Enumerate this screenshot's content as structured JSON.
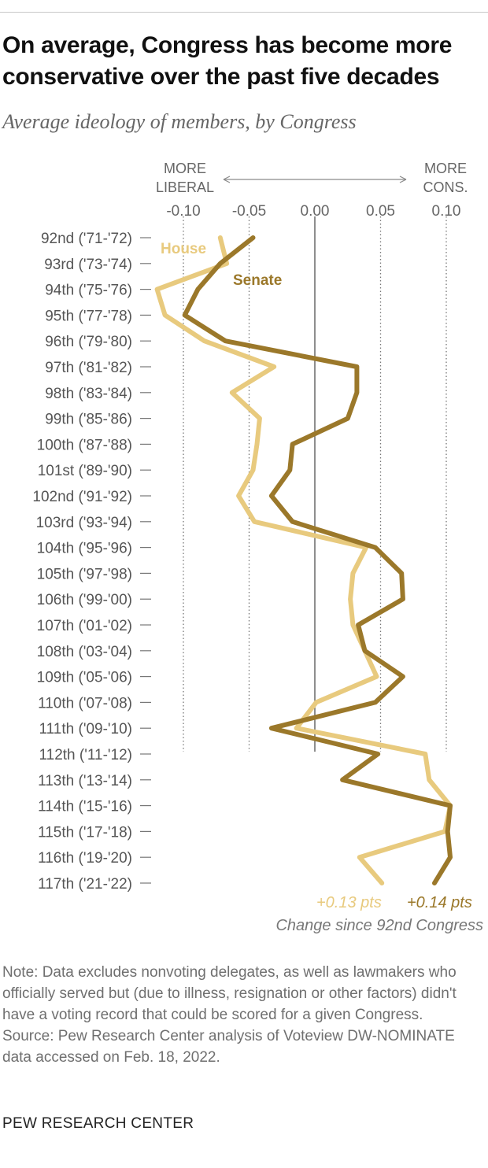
{
  "title": "On average, Congress has become more conservative over the past five decades",
  "subtitle": "Average ideology of members, by Congress",
  "colors": {
    "house": "#e8ca7e",
    "senate": "#9b782a",
    "axis": "#666666",
    "grid": "#777777"
  },
  "chart_data": {
    "type": "line",
    "x_axis": {
      "ticks": [
        -0.1,
        -0.05,
        0.0,
        0.05,
        0.1
      ],
      "tick_labels": [
        "-0.10",
        "-0.05",
        "0.00",
        "0.05",
        "0.10"
      ],
      "range": [
        -0.1,
        0.1
      ],
      "left_label": [
        "MORE",
        "LIBERAL"
      ],
      "right_label": [
        "MORE",
        "CONS."
      ]
    },
    "categories": [
      "92nd ('71-'72)",
      "93rd ('73-'74)",
      "94th ('75-'76)",
      "95th ('77-'78)",
      "96th ('79-'80)",
      "97th ('81-'82)",
      "98th ('83-'84)",
      "99th ('85-'86)",
      "100th ('87-'88)",
      "101st ('89-'90)",
      "102nd ('91-'92)",
      "103rd ('93-'94)",
      "104th ('95-'96)",
      "105th ('97-'98)",
      "106th ('99-'00)",
      "107th ('01-'02)",
      "108th ('03-'04)",
      "109th ('05-'06)",
      "110th ('07-'08)",
      "111th ('09-'10)",
      "112th ('11-'12)",
      "113th ('13-'14)",
      "114th ('15-'16)",
      "115th ('17-'18)",
      "116th ('19-'20)",
      "117th ('21-'22)"
    ],
    "series": [
      {
        "name": "House",
        "color": "#e8ca7e",
        "values": [
          -0.072,
          -0.067,
          -0.12,
          -0.114,
          -0.084,
          -0.031,
          -0.063,
          -0.042,
          -0.044,
          -0.047,
          -0.058,
          -0.046,
          0.039,
          0.029,
          0.027,
          0.029,
          0.038,
          0.047,
          0.001,
          -0.014,
          0.084,
          0.087,
          0.103,
          0.099,
          0.034,
          0.051
        ],
        "change_label": "+0.13 pts"
      },
      {
        "name": "Senate",
        "color": "#9b782a",
        "values": [
          -0.047,
          -0.072,
          -0.089,
          -0.099,
          -0.068,
          0.032,
          0.032,
          0.025,
          -0.017,
          -0.019,
          -0.033,
          -0.017,
          0.046,
          0.066,
          0.067,
          0.033,
          0.038,
          0.067,
          0.046,
          -0.033,
          0.048,
          0.021,
          0.103,
          0.101,
          0.103,
          0.091
        ],
        "change_label": "+0.14 pts"
      }
    ],
    "change_caption": "Change since 92nd Congress",
    "grid": "dotted"
  },
  "note": {
    "note_text": "Note: Data excludes nonvoting delegates, as well as lawmakers who officially served but (due to illness, resignation or other factors) didn't have a voting record that could be scored for a given Congress.",
    "source_text": "Source: Pew Research Center analysis of Voteview DW-NOMINATE data accessed on Feb. 18, 2022."
  },
  "footer": "PEW RESEARCH CENTER"
}
